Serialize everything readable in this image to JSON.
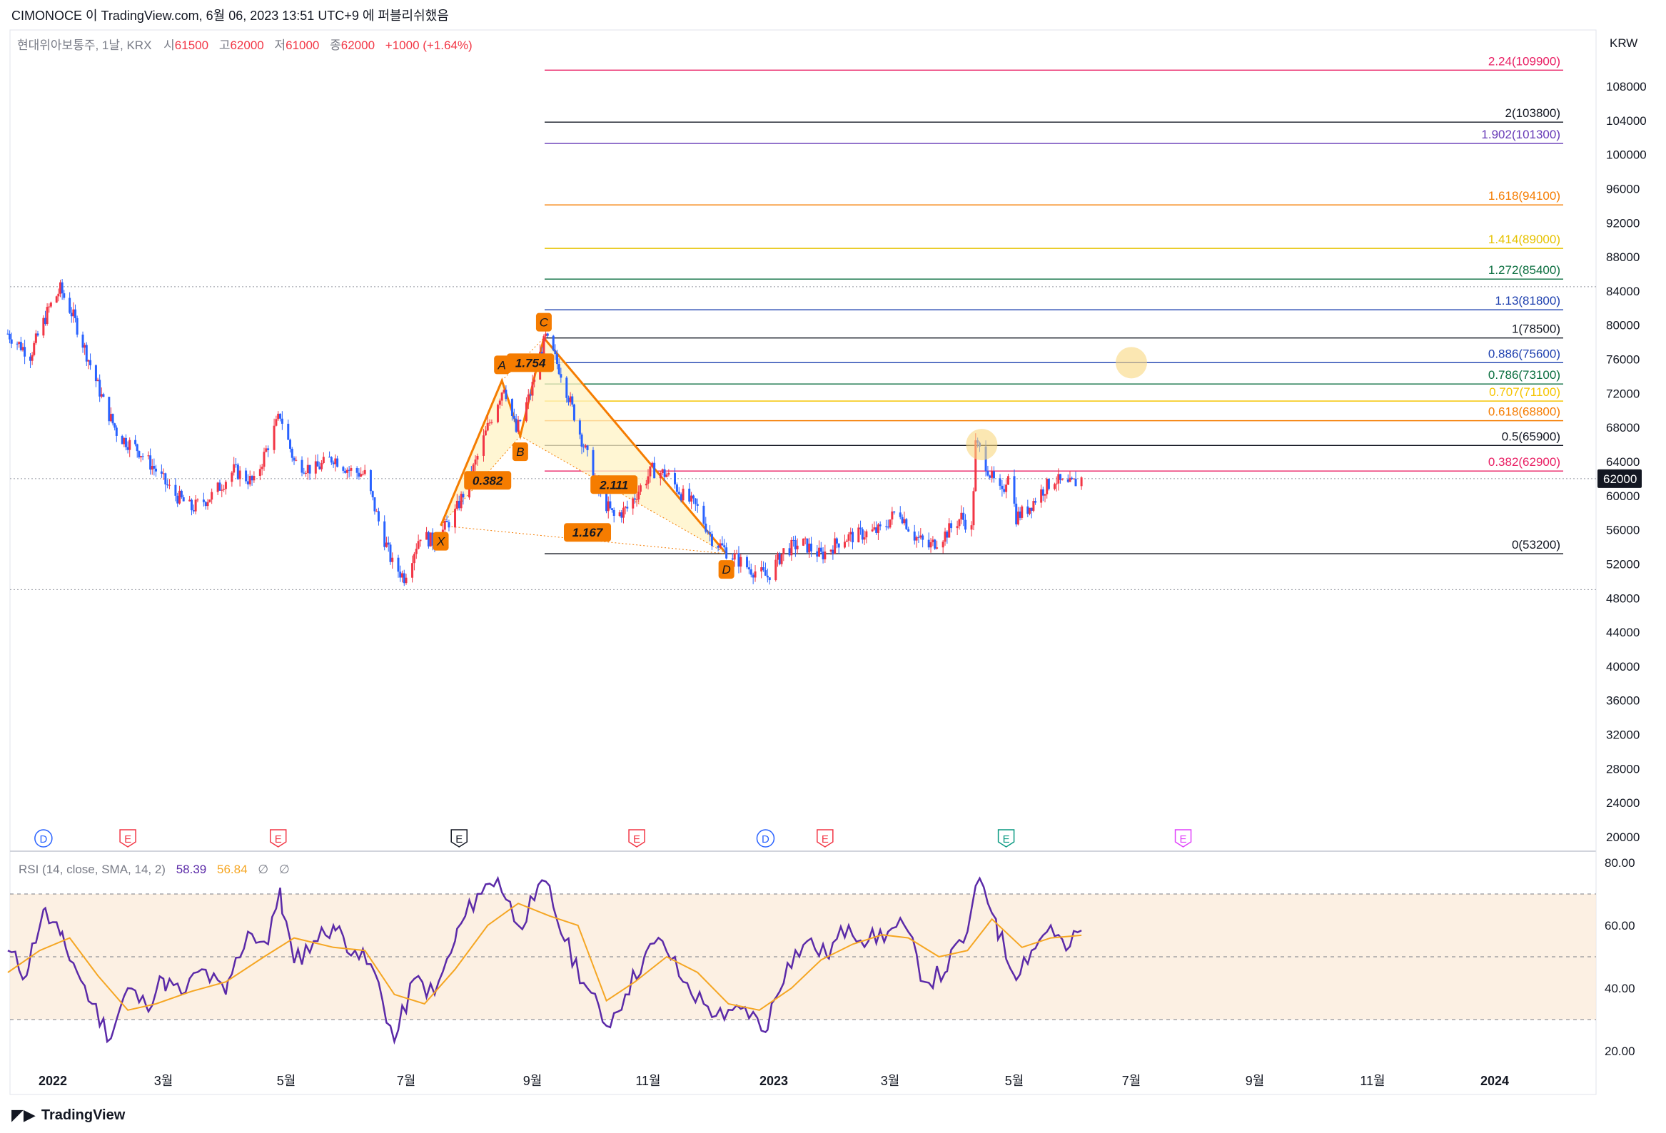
{
  "header": {
    "publish_line": "CIMONOCE 이 TradingView.com, 6월 06, 2023 13:51 UTC+9 에 퍼블리쉬했음"
  },
  "legend": {
    "symbol": "현대위아보통주, 1날, KRX",
    "o_label": "시",
    "o_val": "61500",
    "h_label": "고",
    "h_val": "62000",
    "l_label": "저",
    "l_val": "61000",
    "c_label": "종",
    "c_val": "62000",
    "change": "+1000 (+1.64%)"
  },
  "currency": "KRW",
  "last_price_tag": "62000",
  "footer": {
    "brand": "TradingView"
  },
  "colors": {
    "up": "#089981",
    "down": "#f23645",
    "candle_up": "#2962ff",
    "pattern": "#f57c00",
    "rsi": "#5b2aa8",
    "rsi_ma": "#f5a623"
  },
  "chart_data": [
    {
      "type": "candlestick",
      "title": "현대위아보통주, 1날, KRX",
      "y_axis_ticks": [
        108000,
        104000,
        100000,
        96000,
        92000,
        88000,
        84000,
        80000,
        76000,
        72000,
        68000,
        64000,
        60000,
        56000,
        52000,
        48000,
        44000,
        40000,
        36000,
        32000,
        28000,
        24000,
        20000
      ],
      "ylim": [
        18000,
        111000
      ],
      "x_axis_ticks": [
        "2022",
        "3월",
        "5월",
        "7월",
        "9월",
        "11월",
        "2023",
        "3월",
        "5월",
        "7월",
        "9월",
        "11월",
        "2024"
      ],
      "x_tick_dates": [
        "2022-01-01",
        "2022-03-01",
        "2022-05-01",
        "2022-07-01",
        "2022-09-01",
        "2022-11-01",
        "2023-01-01",
        "2023-03-01",
        "2023-05-01",
        "2023-07-01",
        "2023-09-01",
        "2023-11-01",
        "2024-01-01"
      ],
      "price_path": [
        [
          "2021-12-08",
          79000
        ],
        [
          "2021-12-20",
          76500
        ],
        [
          "2021-12-30",
          82000
        ],
        [
          "2022-01-05",
          84200
        ],
        [
          "2022-01-12",
          81000
        ],
        [
          "2022-01-20",
          76000
        ],
        [
          "2022-01-28",
          71000
        ],
        [
          "2022-02-05",
          67000
        ],
        [
          "2022-02-15",
          65500
        ],
        [
          "2022-02-25",
          63000
        ],
        [
          "2022-03-05",
          60500
        ],
        [
          "2022-03-15",
          58500
        ],
        [
          "2022-03-25",
          60000
        ],
        [
          "2022-04-05",
          63000
        ],
        [
          "2022-04-15",
          61500
        ],
        [
          "2022-04-22",
          66000
        ],
        [
          "2022-04-28",
          69500
        ],
        [
          "2022-05-05",
          64000
        ],
        [
          "2022-05-15",
          63000
        ],
        [
          "2022-05-25",
          64500
        ],
        [
          "2022-06-02",
          63000
        ],
        [
          "2022-06-10",
          62500
        ],
        [
          "2022-06-17",
          57000
        ],
        [
          "2022-06-24",
          52000
        ],
        [
          "2022-06-30",
          50500
        ],
        [
          "2022-07-08",
          55500
        ],
        [
          "2022-07-15",
          54500
        ],
        [
          "2022-07-25",
          58000
        ],
        [
          "2022-08-02",
          62500
        ],
        [
          "2022-08-10",
          68000
        ],
        [
          "2022-08-18",
          73000
        ],
        [
          "2022-08-24",
          67500
        ],
        [
          "2022-08-31",
          72000
        ],
        [
          "2022-09-05",
          76500
        ],
        [
          "2022-09-08",
          78500
        ],
        [
          "2022-09-16",
          74500
        ],
        [
          "2022-09-23",
          69500
        ],
        [
          "2022-09-30",
          64500
        ],
        [
          "2022-10-07",
          60000
        ],
        [
          "2022-10-14",
          57500
        ],
        [
          "2022-10-21",
          58500
        ],
        [
          "2022-10-28",
          61000
        ],
        [
          "2022-11-03",
          63000
        ],
        [
          "2022-11-10",
          62500
        ],
        [
          "2022-11-18",
          60000
        ],
        [
          "2022-11-25",
          58500
        ],
        [
          "2022-12-02",
          55000
        ],
        [
          "2022-12-09",
          53500
        ],
        [
          "2022-12-20",
          51500
        ],
        [
          "2022-12-29",
          50500
        ],
        [
          "2023-01-06",
          53500
        ],
        [
          "2023-01-15",
          54500
        ],
        [
          "2023-01-25",
          53000
        ],
        [
          "2023-02-05",
          55000
        ],
        [
          "2023-02-15",
          55500
        ],
        [
          "2023-02-25",
          56000
        ],
        [
          "2023-03-05",
          58500
        ],
        [
          "2023-03-12",
          55500
        ],
        [
          "2023-03-20",
          54000
        ],
        [
          "2023-03-28",
          55500
        ],
        [
          "2023-04-05",
          57500
        ],
        [
          "2023-04-10",
          56000
        ],
        [
          "2023-04-12",
          66000
        ],
        [
          "2023-04-15",
          65000
        ],
        [
          "2023-04-20",
          62000
        ],
        [
          "2023-04-25",
          60000
        ],
        [
          "2023-04-28",
          63000
        ],
        [
          "2023-05-02",
          57500
        ],
        [
          "2023-05-08",
          58500
        ],
        [
          "2023-05-15",
          60500
        ],
        [
          "2023-05-22",
          62000
        ],
        [
          "2023-05-28",
          61000
        ],
        [
          "2023-06-05",
          62000
        ]
      ],
      "horizontal_lines": [
        84500,
        62000,
        49000
      ],
      "xabcd_pattern": {
        "points": [
          {
            "label": "X",
            "date": "2022-07-18",
            "price": 56500
          },
          {
            "label": "A",
            "date": "2022-08-17",
            "price": 73500
          },
          {
            "label": "B",
            "date": "2022-08-26",
            "price": 67000
          },
          {
            "label": "C",
            "date": "2022-09-07",
            "price": 78500
          },
          {
            "label": "D",
            "date": "2022-12-09",
            "price": 53200
          }
        ],
        "ratios": [
          {
            "text": "0.382",
            "date": "2022-08-10",
            "price": 61800
          },
          {
            "text": "1.754",
            "date": "2022-08-31",
            "price": 75600
          },
          {
            "text": "2.111",
            "date": "2022-10-14",
            "price": 61300
          },
          {
            "text": "1.167",
            "date": "2022-09-30",
            "price": 55700
          }
        ]
      },
      "fib_levels": [
        {
          "ratio": "2.24",
          "price": 109900,
          "label": "2.24(109900)",
          "color": "#e91e63"
        },
        {
          "ratio": "2",
          "price": 103800,
          "label": "2(103800)",
          "color": "#131722"
        },
        {
          "ratio": "1.902",
          "price": 101300,
          "label": "1.902(101300)",
          "color": "#673ab7"
        },
        {
          "ratio": "1.618",
          "price": 94100,
          "label": "1.618(94100)",
          "color": "#f57c00"
        },
        {
          "ratio": "1.414",
          "price": 89000,
          "label": "1.414(89000)",
          "color": "#e6c200"
        },
        {
          "ratio": "1.272",
          "price": 85400,
          "label": "1.272(85400)",
          "color": "#0a6e3f"
        },
        {
          "ratio": "1.13",
          "price": 81800,
          "label": "1.13(81800)",
          "color": "#1e40af"
        },
        {
          "ratio": "1",
          "price": 78500,
          "label": "1(78500)",
          "color": "#131722"
        },
        {
          "ratio": "0.886",
          "price": 75600,
          "label": "0.886(75600)",
          "color": "#1e40af"
        },
        {
          "ratio": "0.786",
          "price": 73100,
          "label": "0.786(73100)",
          "color": "#0a6e3f"
        },
        {
          "ratio": "0.707",
          "price": 71100,
          "label": "0.707(71100)",
          "color": "#f5c400"
        },
        {
          "ratio": "0.618",
          "price": 68800,
          "label": "0.618(68800)",
          "color": "#f57c00"
        },
        {
          "ratio": "0.5",
          "price": 65900,
          "label": "0.5(65900)",
          "color": "#131722"
        },
        {
          "ratio": "0.382",
          "price": 62900,
          "label": "0.382(62900)",
          "color": "#e91e63"
        },
        {
          "ratio": "0",
          "price": 53200,
          "label": "0(53200)",
          "color": "#131722"
        }
      ],
      "highlights": [
        {
          "date": "2023-07-01",
          "price": 75600
        },
        {
          "date": "2023-04-15",
          "price": 66000
        }
      ],
      "events": [
        {
          "text": "D",
          "date": "2021-12-27",
          "kind": "dividend",
          "color": "#2962ff"
        },
        {
          "text": "E",
          "date": "2022-02-10",
          "kind": "earnings",
          "color": "#f23645"
        },
        {
          "text": "E",
          "date": "2022-04-27",
          "kind": "earnings",
          "color": "#f23645"
        },
        {
          "text": "E",
          "date": "2022-07-27",
          "kind": "earnings",
          "color": "#131722"
        },
        {
          "text": "E",
          "date": "2022-10-26",
          "kind": "earnings",
          "color": "#f23645"
        },
        {
          "text": "D",
          "date": "2022-12-28",
          "kind": "dividend",
          "color": "#2962ff"
        },
        {
          "text": "E",
          "date": "2023-01-27",
          "kind": "earnings",
          "color": "#f23645"
        },
        {
          "text": "E",
          "date": "2023-04-27",
          "kind": "earnings",
          "color": "#089981"
        },
        {
          "text": "E",
          "date": "2023-07-27",
          "kind": "earnings",
          "color": "#e040fb"
        }
      ]
    },
    {
      "type": "line",
      "title": "RSI (14, close, SMA, 14, 2)",
      "legend": {
        "label": "RSI (14, close, SMA, 14, 2)",
        "rsi_value": "58.39",
        "ma_value": "56.84",
        "extra1": "∅",
        "extra2": "∅"
      },
      "y_axis_ticks": [
        80,
        60,
        40,
        20
      ],
      "y_tick_labels": [
        "80.00",
        "60.00",
        "40.00",
        "20.00"
      ],
      "ylim": [
        16.5,
        82
      ],
      "bands": [
        70,
        50,
        30
      ],
      "series": [
        {
          "name": "RSI",
          "color": "#5b2aa8",
          "points": [
            [
              "2021-12-08",
              52
            ],
            [
              "2021-12-18",
              44
            ],
            [
              "2021-12-27",
              65
            ],
            [
              "2022-01-05",
              57
            ],
            [
              "2022-01-12",
              48
            ],
            [
              "2022-01-22",
              35
            ],
            [
              "2022-02-01",
              24
            ],
            [
              "2022-02-10",
              40
            ],
            [
              "2022-02-20",
              34
            ],
            [
              "2022-03-01",
              43
            ],
            [
              "2022-03-10",
              38
            ],
            [
              "2022-03-20",
              46
            ],
            [
              "2022-04-01",
              38
            ],
            [
              "2022-04-12",
              58
            ],
            [
              "2022-04-22",
              54
            ],
            [
              "2022-04-28",
              72
            ],
            [
              "2022-05-05",
              48
            ],
            [
              "2022-05-15",
              55
            ],
            [
              "2022-05-25",
              60
            ],
            [
              "2022-06-05",
              52
            ],
            [
              "2022-06-15",
              45
            ],
            [
              "2022-06-25",
              23
            ],
            [
              "2022-07-05",
              43
            ],
            [
              "2022-07-15",
              38
            ],
            [
              "2022-07-25",
              55
            ],
            [
              "2022-08-05",
              70
            ],
            [
              "2022-08-15",
              75
            ],
            [
              "2022-08-25",
              60
            ],
            [
              "2022-09-02",
              68
            ],
            [
              "2022-09-08",
              74
            ],
            [
              "2022-09-18",
              55
            ],
            [
              "2022-09-30",
              40
            ],
            [
              "2022-10-10",
              28
            ],
            [
              "2022-10-20",
              38
            ],
            [
              "2022-10-30",
              50
            ],
            [
              "2022-11-08",
              55
            ],
            [
              "2022-11-18",
              42
            ],
            [
              "2022-11-28",
              35
            ],
            [
              "2022-12-08",
              30
            ],
            [
              "2022-12-18",
              34
            ],
            [
              "2022-12-28",
              26
            ],
            [
              "2023-01-08",
              48
            ],
            [
              "2023-01-18",
              55
            ],
            [
              "2023-01-28",
              50
            ],
            [
              "2023-02-08",
              60
            ],
            [
              "2023-02-18",
              55
            ],
            [
              "2023-02-28",
              58
            ],
            [
              "2023-03-08",
              60
            ],
            [
              "2023-03-18",
              42
            ],
            [
              "2023-03-28",
              45
            ],
            [
              "2023-04-08",
              58
            ],
            [
              "2023-04-14",
              75
            ],
            [
              "2023-04-22",
              62
            ],
            [
              "2023-05-01",
              44
            ],
            [
              "2023-05-10",
              52
            ],
            [
              "2023-05-20",
              60
            ],
            [
              "2023-05-28",
              52
            ],
            [
              "2023-06-05",
              58.39
            ]
          ]
        },
        {
          "name": "MA",
          "color": "#f5a623",
          "points": [
            [
              "2021-12-08",
              45
            ],
            [
              "2021-12-25",
              52
            ],
            [
              "2022-01-10",
              56
            ],
            [
              "2022-01-25",
              44
            ],
            [
              "2022-02-10",
              33
            ],
            [
              "2022-02-25",
              35
            ],
            [
              "2022-03-15",
              39
            ],
            [
              "2022-04-01",
              42
            ],
            [
              "2022-04-20",
              50
            ],
            [
              "2022-05-05",
              56
            ],
            [
              "2022-05-25",
              53
            ],
            [
              "2022-06-10",
              52
            ],
            [
              "2022-06-25",
              38
            ],
            [
              "2022-07-10",
              35
            ],
            [
              "2022-07-25",
              46
            ],
            [
              "2022-08-10",
              60
            ],
            [
              "2022-08-25",
              67
            ],
            [
              "2022-09-10",
              63
            ],
            [
              "2022-09-25",
              60
            ],
            [
              "2022-10-10",
              36
            ],
            [
              "2022-10-25",
              42
            ],
            [
              "2022-11-10",
              50
            ],
            [
              "2022-11-25",
              45
            ],
            [
              "2022-12-10",
              35
            ],
            [
              "2022-12-25",
              33
            ],
            [
              "2023-01-10",
              40
            ],
            [
              "2023-01-25",
              49
            ],
            [
              "2023-02-10",
              54
            ],
            [
              "2023-02-25",
              57
            ],
            [
              "2023-03-10",
              56
            ],
            [
              "2023-03-25",
              50
            ],
            [
              "2023-04-08",
              52
            ],
            [
              "2023-04-20",
              62
            ],
            [
              "2023-05-05",
              53
            ],
            [
              "2023-05-20",
              56
            ],
            [
              "2023-06-05",
              56.84
            ]
          ]
        }
      ]
    }
  ]
}
